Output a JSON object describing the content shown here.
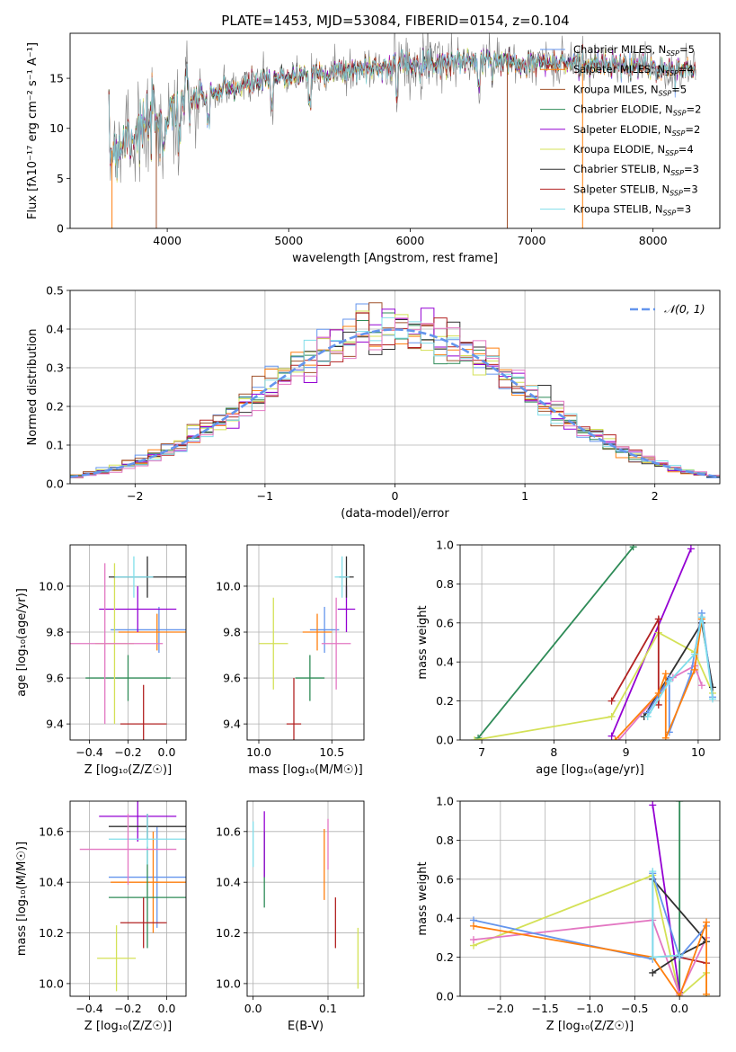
{
  "figure_title": "PLATE=1453, MJD=53084, FIBERID=0154, z=0.104",
  "colors": {
    "chabrier_miles": "#6495ed",
    "salpeter_miles": "#ff7f0e",
    "kroupa_miles": "#a0522d",
    "chabrier_elodie": "#2e8b57",
    "salpeter_elodie": "#9400d3",
    "kroupa_elodie": "#d4e157",
    "chabrier_stelib": "#303030",
    "salpeter_stelib": "#b22222",
    "kroupa_stelib": "#80deea",
    "pink": "#e377c2",
    "normal": "#6495ed",
    "grid": "#b0b0b0"
  },
  "chart_data": [
    {
      "id": "spectrum",
      "type": "line",
      "xlabel": "wavelength [Angstrom, rest frame]",
      "ylabel": "Flux [fλ10⁻¹⁷ erg cm⁻² s⁻¹ A⁻¹]",
      "xlim": [
        3200,
        8550
      ],
      "ylim": [
        0,
        19.5
      ],
      "xticks": [
        4000,
        5000,
        6000,
        7000,
        8000
      ],
      "yticks": [
        0,
        5,
        10,
        15
      ],
      "grid": false,
      "legend_placement": "upper-right",
      "continuum": [
        [
          3520,
          7.5
        ],
        [
          3700,
          9.5
        ],
        [
          3900,
          10.5
        ],
        [
          4100,
          12.5
        ],
        [
          4400,
          13.5
        ],
        [
          4700,
          14.5
        ],
        [
          5000,
          15.2
        ],
        [
          5500,
          15.8
        ],
        [
          6000,
          16.5
        ],
        [
          6500,
          16.8
        ],
        [
          7000,
          16.6
        ],
        [
          7500,
          16.4
        ],
        [
          8000,
          16.0
        ],
        [
          8350,
          15.8
        ]
      ],
      "series": [
        {
          "name": "Chabrier MILES, N_SSP=5",
          "color": "#6495ed"
        },
        {
          "name": "Salpeter MILES, N_SSP=4",
          "color": "#ff7f0e"
        },
        {
          "name": "Kroupa MILES, N_SSP=5",
          "color": "#a0522d"
        },
        {
          "name": "Chabrier ELODIE, N_SSP=2",
          "color": "#2e8b57"
        },
        {
          "name": "Salpeter ELODIE, N_SSP=2",
          "color": "#9400d3"
        },
        {
          "name": "Kroupa ELODIE, N_SSP=4",
          "color": "#d4e157"
        },
        {
          "name": "Chabrier STELIB, N_SSP=3",
          "color": "#303030"
        },
        {
          "name": "Salpeter STELIB, N_SSP=3",
          "color": "#b22222"
        },
        {
          "name": "Kroupa STELIB, N_SSP=3",
          "color": "#80deea"
        }
      ]
    },
    {
      "id": "residuals",
      "type": "area",
      "xlabel": "(data-model)/error",
      "ylabel": "Normed distribution",
      "xlim": [
        -2.5,
        2.5
      ],
      "ylim": [
        0,
        0.5
      ],
      "xticks": [
        -2,
        -1,
        0,
        1,
        2
      ],
      "yticks": [
        0.0,
        0.1,
        0.2,
        0.3,
        0.4,
        0.5
      ],
      "grid": true,
      "bin_width": 0.1,
      "legend_placement": "upper-right",
      "reference_curve": {
        "name": "𝒩(0, 1)",
        "mean": 0,
        "sigma": 1,
        "style": "dashed"
      }
    },
    {
      "id": "z_age",
      "type": "scatter",
      "xlabel": "Z [log₁₀(Z/Z☉)]",
      "ylabel": "age  [log₁₀(age/yr)]",
      "xlim": [
        -0.5,
        0.1
      ],
      "ylim": [
        9.33,
        10.18
      ],
      "xticks": [
        -0.4,
        -0.2,
        0.0
      ],
      "yticks": [
        9.4,
        9.6,
        9.8,
        10.0
      ],
      "grid": true,
      "points": [
        {
          "x": -0.04,
          "y": 9.81,
          "xerr": 0.25,
          "yerr": 0.1,
          "color": "#6495ed"
        },
        {
          "x": -0.05,
          "y": 9.8,
          "xerr": 0.2,
          "yerr": 0.08,
          "color": "#ff7f0e"
        },
        {
          "x": -0.2,
          "y": 9.6,
          "xerr": 0.22,
          "yerr": 0.1,
          "color": "#2e8b57"
        },
        {
          "x": -0.15,
          "y": 9.9,
          "xerr": 0.2,
          "yerr": 0.1,
          "color": "#9400d3"
        },
        {
          "x": -0.27,
          "y": 9.75,
          "xerr": 0.1,
          "yerr": 0.35,
          "color": "#d4e157"
        },
        {
          "x": -0.1,
          "y": 10.04,
          "xerr": 0.2,
          "yerr": 0.09,
          "color": "#303030"
        },
        {
          "x": -0.12,
          "y": 9.4,
          "xerr": 0.12,
          "yerr": 0.17,
          "color": "#b22222"
        },
        {
          "x": -0.17,
          "y": 10.04,
          "xerr": 0.1,
          "yerr": 0.09,
          "color": "#80deea"
        },
        {
          "x": -0.32,
          "y": 9.75,
          "xerr": 0.3,
          "yerr": 0.35,
          "color": "#e377c2"
        }
      ]
    },
    {
      "id": "mass_age",
      "type": "scatter",
      "xlabel": "mass [log₁₀(M/M☉)]",
      "ylabel": "",
      "xlim": [
        9.92,
        10.72
      ],
      "ylim": [
        9.33,
        10.18
      ],
      "xticks": [
        10.0,
        10.5
      ],
      "yticks": [
        9.4,
        9.6,
        9.8,
        10.0
      ],
      "grid": true,
      "points": [
        {
          "x": 10.45,
          "y": 9.81,
          "xerr": 0.1,
          "yerr": 0.1,
          "color": "#6495ed"
        },
        {
          "x": 10.4,
          "y": 9.8,
          "xerr": 0.1,
          "yerr": 0.08,
          "color": "#ff7f0e"
        },
        {
          "x": 10.35,
          "y": 9.6,
          "xerr": 0.1,
          "yerr": 0.1,
          "color": "#2e8b57"
        },
        {
          "x": 10.6,
          "y": 9.9,
          "xerr": 0.06,
          "yerr": 0.1,
          "color": "#9400d3"
        },
        {
          "x": 10.1,
          "y": 9.75,
          "xerr": 0.1,
          "yerr": 0.2,
          "color": "#d4e157"
        },
        {
          "x": 10.6,
          "y": 10.04,
          "xerr": 0.05,
          "yerr": 0.09,
          "color": "#303030"
        },
        {
          "x": 10.24,
          "y": 9.4,
          "xerr": 0.05,
          "yerr": 0.2,
          "color": "#b22222"
        },
        {
          "x": 10.57,
          "y": 10.04,
          "xerr": 0.05,
          "yerr": 0.09,
          "color": "#80deea"
        },
        {
          "x": 10.53,
          "y": 9.75,
          "xerr": 0.1,
          "yerr": 0.2,
          "color": "#e377c2"
        }
      ]
    },
    {
      "id": "age_weight",
      "type": "line",
      "xlabel": "age  [log₁₀(age/yr)]",
      "ylabel": "mass weight",
      "xlim": [
        6.7,
        10.3
      ],
      "ylim": [
        0,
        1
      ],
      "xticks": [
        7,
        8,
        9,
        10
      ],
      "yticks": [
        0.0,
        0.2,
        0.4,
        0.6,
        0.8,
        1.0
      ],
      "grid": true,
      "series": [
        {
          "color": "#2e8b57",
          "x": [
            6.95,
            9.1
          ],
          "y": [
            0.01,
            0.99
          ]
        },
        {
          "color": "#9400d3",
          "x": [
            8.8,
            9.9
          ],
          "y": [
            0.02,
            0.98
          ]
        },
        {
          "color": "#d4e157",
          "x": [
            6.9,
            8.8,
            9.45,
            9.95,
            10.2
          ],
          "y": [
            0.0,
            0.12,
            0.55,
            0.45,
            0.24
          ]
        },
        {
          "color": "#b22222",
          "x": [
            8.8,
            9.45,
            9.45
          ],
          "y": [
            0.2,
            0.62,
            0.18
          ]
        },
        {
          "color": "#e377c2",
          "x": [
            8.9,
            9.65,
            9.95,
            10.05
          ],
          "y": [
            0.0,
            0.32,
            0.38,
            0.28
          ]
        },
        {
          "color": "#303030",
          "x": [
            9.25,
            10.05,
            10.2
          ],
          "y": [
            0.12,
            0.6,
            0.27
          ]
        },
        {
          "color": "#6495ed",
          "x": [
            9.3,
            9.6,
            9.6,
            9.9,
            10.05,
            10.2
          ],
          "y": [
            0.14,
            0.32,
            0.04,
            0.34,
            0.65,
            0.22
          ]
        },
        {
          "color": "#ff7f0e",
          "x": [
            8.85,
            9.45,
            9.55,
            9.55,
            9.95,
            10.05
          ],
          "y": [
            0.0,
            0.24,
            0.34,
            0.01,
            0.36,
            0.62
          ]
        },
        {
          "color": "#80deea",
          "x": [
            9.3,
            9.6,
            9.95,
            10.05,
            10.2
          ],
          "y": [
            0.12,
            0.3,
            0.44,
            0.63,
            0.21
          ]
        }
      ]
    },
    {
      "id": "z_mass",
      "type": "scatter",
      "xlabel": "Z [log₁₀(Z/Z☉)]",
      "ylabel": "mass [log₁₀(M/M☉)]",
      "xlim": [
        -0.5,
        0.1
      ],
      "ylim": [
        9.95,
        10.72
      ],
      "xticks": [
        -0.4,
        -0.2,
        0.0
      ],
      "yticks": [
        10.0,
        10.2,
        10.4,
        10.6
      ],
      "grid": true,
      "points": [
        {
          "x": -0.05,
          "y": 10.42,
          "xerr": 0.25,
          "yerr": 0.2,
          "color": "#6495ed"
        },
        {
          "x": -0.07,
          "y": 10.4,
          "xerr": 0.22,
          "yerr": 0.2,
          "color": "#ff7f0e"
        },
        {
          "x": -0.1,
          "y": 10.34,
          "xerr": 0.2,
          "yerr": 0.2,
          "color": "#2e8b57"
        },
        {
          "x": -0.15,
          "y": 10.66,
          "xerr": 0.2,
          "yerr": 0.1,
          "color": "#9400d3"
        },
        {
          "x": -0.26,
          "y": 10.1,
          "xerr": 0.1,
          "yerr": 0.13,
          "color": "#d4e157"
        },
        {
          "x": -0.1,
          "y": 10.62,
          "xerr": 0.2,
          "yerr": 0.05,
          "color": "#303030"
        },
        {
          "x": -0.12,
          "y": 10.24,
          "xerr": 0.12,
          "yerr": 0.1,
          "color": "#b22222"
        },
        {
          "x": -0.1,
          "y": 10.57,
          "xerr": 0.2,
          "yerr": 0.1,
          "color": "#80deea"
        },
        {
          "x": -0.2,
          "y": 10.53,
          "xerr": 0.25,
          "yerr": 0.14,
          "color": "#e377c2"
        }
      ]
    },
    {
      "id": "ebv_mass",
      "type": "scatter",
      "xlabel": "E(B-V)",
      "ylabel": "",
      "xlim": [
        -0.008,
        0.148
      ],
      "ylim": [
        9.95,
        10.72
      ],
      "xticks": [
        0.0,
        0.1
      ],
      "yticks": [
        10.0,
        10.2,
        10.4,
        10.6
      ],
      "grid": true,
      "points": [
        {
          "x": 0.0,
          "y": 10.55,
          "xerr": 0,
          "yerr": 0.09,
          "color": "#80deea"
        },
        {
          "x": 0.015,
          "y": 10.45,
          "xerr": 0,
          "yerr": 0.15,
          "color": "#2e8b57"
        },
        {
          "x": 0.015,
          "y": 10.55,
          "xerr": 0,
          "yerr": 0.13,
          "color": "#9400d3"
        },
        {
          "x": 0.095,
          "y": 10.47,
          "xerr": 0,
          "yerr": 0.14,
          "color": "#ff7f0e"
        },
        {
          "x": 0.1,
          "y": 10.55,
          "xerr": 0,
          "yerr": 0.1,
          "color": "#e377c2"
        },
        {
          "x": 0.11,
          "y": 10.24,
          "xerr": 0,
          "yerr": 0.1,
          "color": "#b22222"
        },
        {
          "x": 0.14,
          "y": 10.1,
          "xerr": 0,
          "yerr": 0.12,
          "color": "#d4e157"
        }
      ]
    },
    {
      "id": "z_weight",
      "type": "line",
      "xlabel": "Z [log₁₀(Z/Z☉)]",
      "ylabel": "mass weight",
      "xlim": [
        -2.45,
        0.45
      ],
      "ylim": [
        0,
        1
      ],
      "xticks": [
        -2.0,
        -1.5,
        -1.0,
        -0.5,
        0.0
      ],
      "yticks": [
        0.0,
        0.2,
        0.4,
        0.6,
        0.8,
        1.0
      ],
      "grid": true,
      "series": [
        {
          "color": "#2e8b57",
          "x": [
            0.0,
            0.0
          ],
          "y": [
            0.0,
            1.0
          ]
        },
        {
          "color": "#9400d3",
          "x": [
            -0.3,
            0.0
          ],
          "y": [
            0.98,
            0.02
          ]
        },
        {
          "color": "#d4e157",
          "x": [
            -2.3,
            -0.3,
            0.0,
            0.3,
            0.3
          ],
          "y": [
            0.26,
            0.62,
            0.0,
            0.12,
            0.0
          ]
        },
        {
          "color": "#b22222",
          "x": [
            0.0,
            0.3
          ],
          "y": [
            0.2,
            0.17
          ]
        },
        {
          "color": "#e377c2",
          "x": [
            -2.3,
            -0.3,
            0.0,
            0.3
          ],
          "y": [
            0.29,
            0.39,
            0.01,
            0.3
          ]
        },
        {
          "color": "#303030",
          "x": [
            -0.3,
            0.3,
            0.0,
            -0.3
          ],
          "y": [
            0.6,
            0.28,
            0.21,
            0.12
          ]
        },
        {
          "color": "#6495ed",
          "x": [
            -2.3,
            -0.3,
            -0.3,
            0.0,
            0.3
          ],
          "y": [
            0.39,
            0.19,
            0.63,
            0.2,
            0.36
          ]
        },
        {
          "color": "#ff7f0e",
          "x": [
            -2.3,
            -0.3,
            0.0,
            0.3,
            0.3
          ],
          "y": [
            0.36,
            0.2,
            0.0,
            0.38,
            0.01
          ]
        },
        {
          "color": "#80deea",
          "x": [
            -0.3,
            -0.3,
            0.0
          ],
          "y": [
            0.64,
            0.2,
            0.21
          ]
        }
      ]
    }
  ]
}
